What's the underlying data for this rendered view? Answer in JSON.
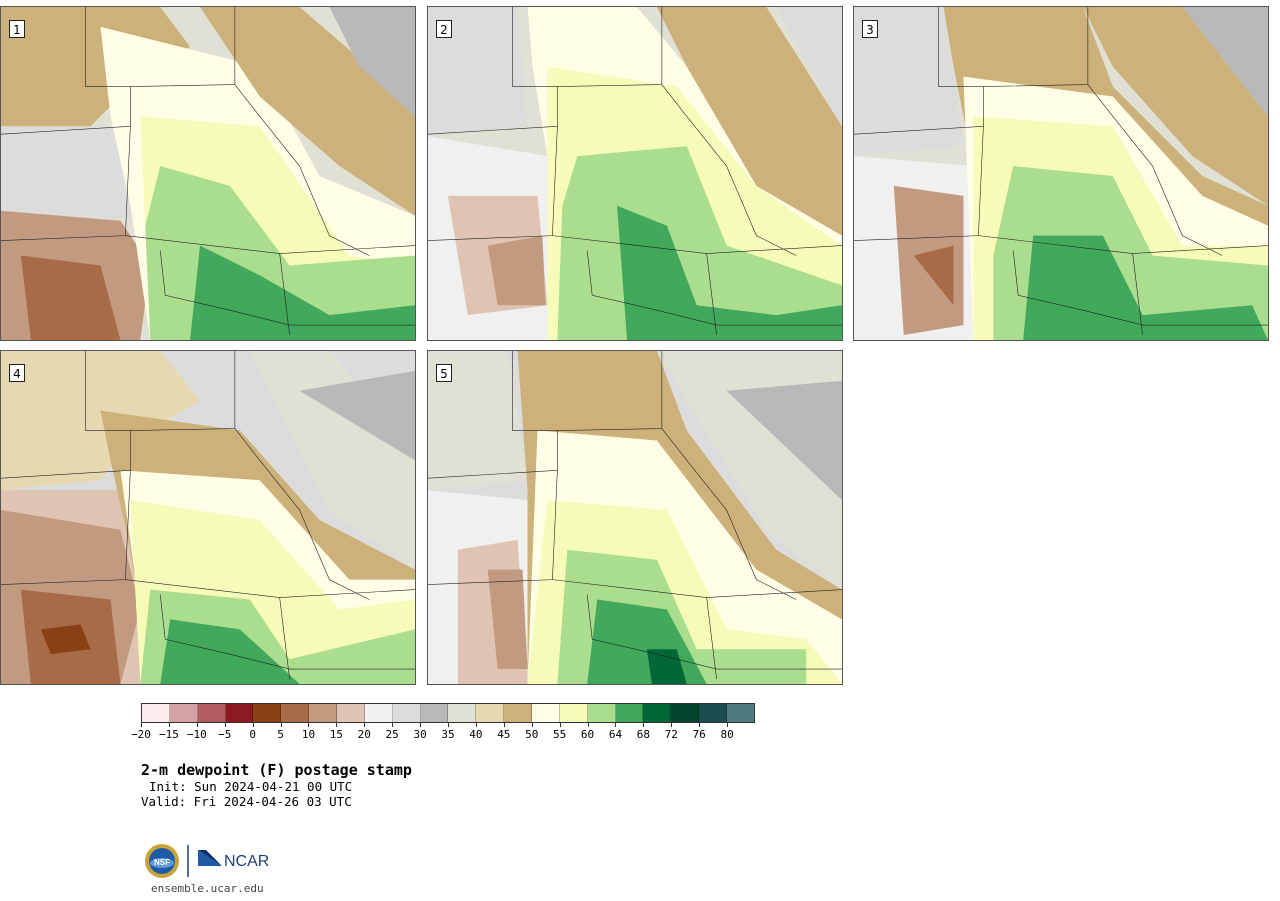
{
  "panels": [
    {
      "label": "1"
    },
    {
      "label": "2"
    },
    {
      "label": "3"
    },
    {
      "label": "4"
    },
    {
      "label": "5"
    }
  ],
  "colorbar": {
    "colors": [
      "#f8ebe9",
      "#d4a1a4",
      "#b25c60",
      "#8c1a22",
      "#8a4015",
      "#a86b47",
      "#c29a80",
      "#e0c4b3",
      "#f0f0f0",
      "#dcdcdc",
      "#b8b8b8",
      "#e0e0d4",
      "#e6d8b0",
      "#ccb27a",
      "#fffde6",
      "#f6fbba",
      "#abdd8e",
      "#41a85c",
      "#006837",
      "#00432a",
      "#1a4c50",
      "#4f7a80"
    ],
    "tick_labels": [
      "−20",
      "−15",
      "−10",
      "−5",
      "0",
      "5",
      "10",
      "15",
      "20",
      "25",
      "30",
      "35",
      "40",
      "45",
      "50",
      "55",
      "60",
      "64",
      "68",
      "72",
      "76",
      "80"
    ]
  },
  "title": "2-m dewpoint (F) postage stamp",
  "init": "Init: Sun 2024-04-21 00 UTC",
  "valid": "Valid: Fri 2024-04-26 03 UTC",
  "site": "ensemble.ucar.edu",
  "logo": {
    "nsf": "NSF",
    "ncar": "NCAR"
  }
}
